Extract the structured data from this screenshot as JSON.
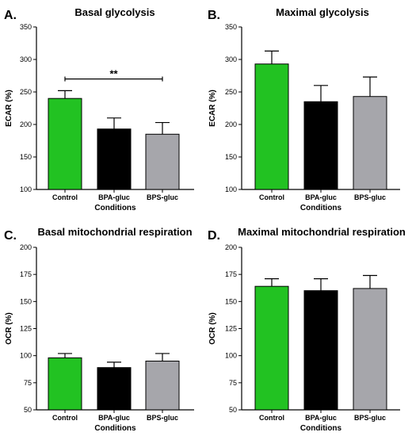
{
  "figure": {
    "colors": {
      "Control": "#22c222",
      "BPA-gluc": "#000000",
      "BPS-gluc": "#a6a6ab"
    }
  },
  "chart_data": [
    {
      "type": "bar",
      "letter": "A.",
      "title": "Basal glycolysis",
      "xlabel": "Conditions",
      "ylabel": "ECAR (%)",
      "categories": [
        "Control",
        "BPA-gluc",
        "BPS-gluc"
      ],
      "values": [
        240,
        193,
        185
      ],
      "errors": [
        12,
        17,
        18
      ],
      "ylim": [
        100,
        350
      ],
      "yticks": [
        100,
        150,
        200,
        250,
        300,
        350
      ],
      "significance": {
        "from": 0,
        "to": 2,
        "level": 270,
        "label": "**"
      }
    },
    {
      "type": "bar",
      "letter": "B.",
      "title": "Maximal glycolysis",
      "xlabel": "Conditions",
      "ylabel": "ECAR (%)",
      "categories": [
        "Control",
        "BPA-gluc",
        "BPS-gluc"
      ],
      "values": [
        293,
        235,
        243
      ],
      "errors": [
        20,
        25,
        30
      ],
      "ylim": [
        100,
        350
      ],
      "yticks": [
        100,
        150,
        200,
        250,
        300,
        350
      ]
    },
    {
      "type": "bar",
      "letter": "C.",
      "title": "Basal mitochondrial respiration",
      "xlabel": "Conditions",
      "ylabel": "OCR (%)",
      "categories": [
        "Control",
        "BPA-gluc",
        "BPS-gluc"
      ],
      "values": [
        98,
        89,
        95
      ],
      "errors": [
        4,
        5,
        7
      ],
      "ylim": [
        50,
        200
      ],
      "yticks": [
        50,
        75,
        100,
        125,
        150,
        175,
        200
      ]
    },
    {
      "type": "bar",
      "letter": "D.",
      "title": "Maximal mitochondrial respiration",
      "xlabel": "Conditions",
      "ylabel": "OCR (%)",
      "categories": [
        "Control",
        "BPA-gluc",
        "BPS-gluc"
      ],
      "values": [
        164,
        160,
        162
      ],
      "errors": [
        7,
        11,
        12
      ],
      "ylim": [
        50,
        200
      ],
      "yticks": [
        50,
        75,
        100,
        125,
        150,
        175,
        200
      ]
    }
  ]
}
